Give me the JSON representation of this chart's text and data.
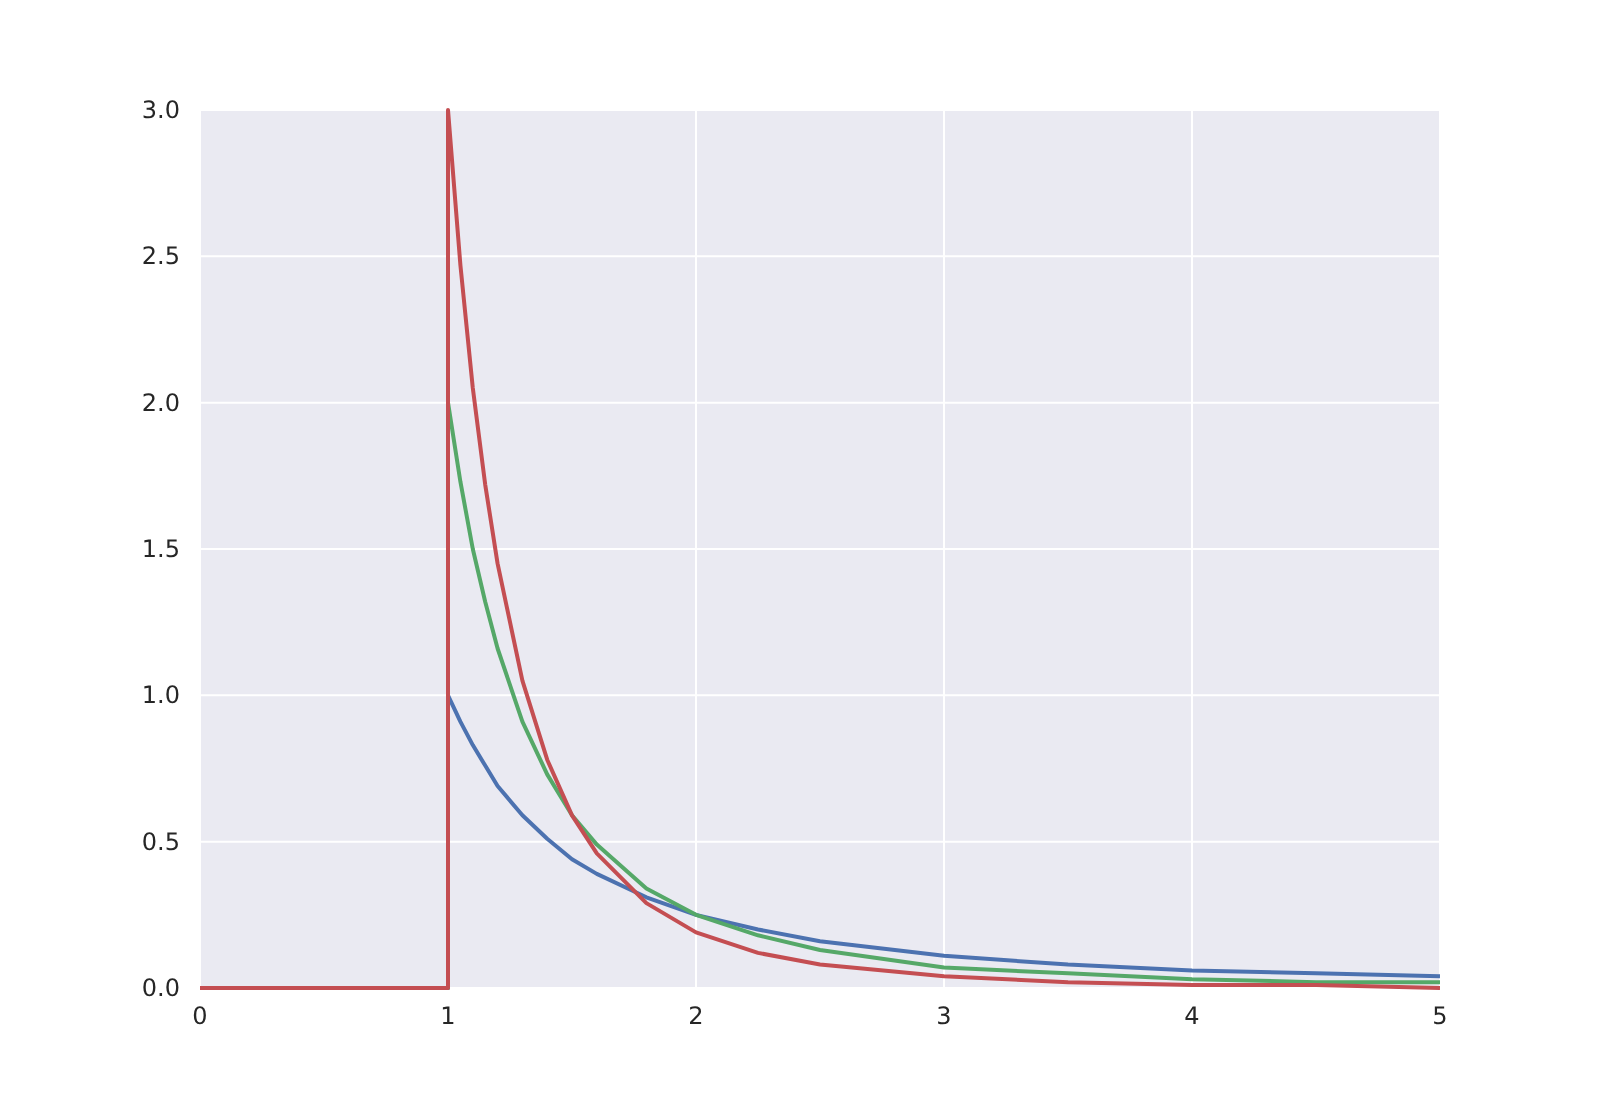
{
  "chart_data": {
    "type": "line",
    "x": [
      0,
      1,
      1,
      1.05,
      1.1,
      1.15,
      1.2,
      1.3,
      1.4,
      1.5,
      1.6,
      1.8,
      2,
      2.25,
      2.5,
      3,
      3.5,
      4,
      4.5,
      5
    ],
    "series": [
      {
        "color": "#4c72b0",
        "values": [
          0,
          0,
          1,
          0.91,
          0.83,
          0.76,
          0.69,
          0.59,
          0.51,
          0.44,
          0.39,
          0.31,
          0.25,
          0.2,
          0.16,
          0.11,
          0.08,
          0.06,
          0.05,
          0.04
        ]
      },
      {
        "color": "#55a868",
        "values": [
          0,
          0,
          2,
          1.73,
          1.5,
          1.32,
          1.16,
          0.91,
          0.73,
          0.59,
          0.49,
          0.34,
          0.25,
          0.18,
          0.13,
          0.07,
          0.05,
          0.03,
          0.02,
          0.02
        ]
      },
      {
        "color": "#c44e52",
        "values": [
          0,
          0,
          3,
          2.47,
          2.05,
          1.72,
          1.45,
          1.05,
          0.78,
          0.59,
          0.46,
          0.29,
          0.19,
          0.12,
          0.08,
          0.04,
          0.02,
          0.01,
          0.01,
          0
        ]
      }
    ],
    "xlim": [
      0,
      5
    ],
    "xticks": [
      0,
      1,
      2,
      3,
      4,
      5
    ],
    "ylim": [
      0,
      3
    ],
    "yticks": [
      {
        "value": 0,
        "label": "0.0"
      },
      {
        "value": 0.5,
        "label": "0.5"
      },
      {
        "value": 1,
        "label": "1.0"
      },
      {
        "value": 1.5,
        "label": "1.5"
      },
      {
        "value": 2,
        "label": "2.0"
      },
      {
        "value": 2.5,
        "label": "2.5"
      },
      {
        "value": 3,
        "label": "3.0"
      }
    ],
    "grid": true,
    "marker": "none",
    "line_style": "solid"
  }
}
